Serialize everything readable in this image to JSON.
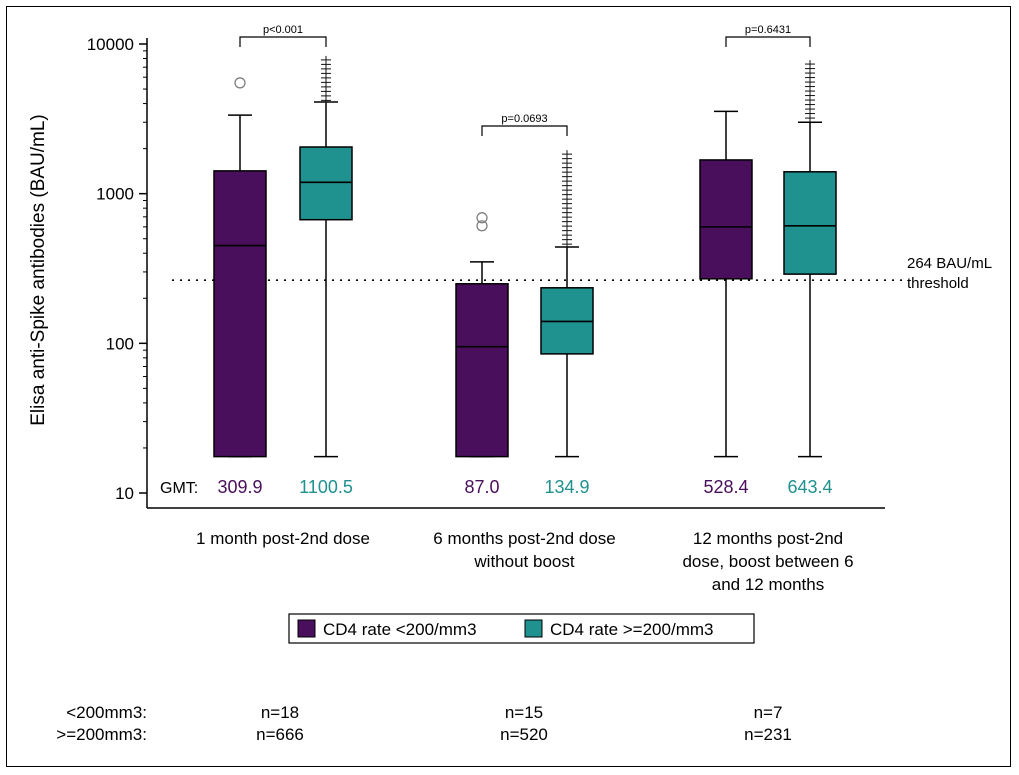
{
  "chart_data": {
    "type": "box",
    "ylabel": "Elisa anti-Spike antibodies (BAU/mL)",
    "yscale": "log",
    "ylim": [
      10,
      10000
    ],
    "yticks": [
      "10",
      "100",
      "1000",
      "10000"
    ],
    "categories": [
      [
        "1 month post-2nd dose"
      ],
      [
        "6 months post-2nd dose",
        "without boost"
      ],
      [
        "12 months post-2nd",
        "dose, boost between 6",
        "and 12 months"
      ]
    ],
    "series": [
      {
        "name": "CD4 rate <200/mm3",
        "color": "#4a0f5c",
        "boxes": [
          {
            "min": 17.5,
            "q1": 17.5,
            "median": 450,
            "q3": 1420,
            "max": 3350,
            "outliers": [
              5500
            ]
          },
          {
            "min": 17.5,
            "q1": 17.5,
            "median": 95,
            "q3": 250,
            "max": 350,
            "outliers": [
              610,
              690
            ]
          },
          {
            "min": 17.5,
            "q1": 270,
            "median": 600,
            "q3": 1680,
            "max": 3550,
            "outliers": []
          }
        ],
        "gmt": [
          "309.9",
          "87.0",
          "528.4"
        ],
        "n_label": "<200mm3:",
        "n": [
          "n=18",
          "n=15",
          "n=7"
        ]
      },
      {
        "name": "CD4 rate >=200/mm3",
        "color": "#1f918f",
        "boxes": [
          {
            "min": 17.5,
            "q1": 670,
            "median": 1190,
            "q3": 2050,
            "max": 4100,
            "outliers_from": 4200,
            "outliers_to": 8000
          },
          {
            "min": 17.5,
            "q1": 85,
            "median": 140,
            "q3": 235,
            "max": 440,
            "outliers_from": 460,
            "outliers_to": 1900
          },
          {
            "min": 17.5,
            "q1": 290,
            "median": 610,
            "q3": 1400,
            "max": 3000,
            "outliers_from": 3200,
            "outliers_to": 7800
          }
        ],
        "gmt": [
          "1100.5",
          "134.9",
          "643.4"
        ],
        "n_label": ">=200mm3:",
        "n": [
          "n=666",
          "n=520",
          "n=231"
        ]
      }
    ],
    "gmt_label": "GMT:",
    "threshold": {
      "value": 264,
      "label": [
        "264 BAU/mL",
        "threshold"
      ]
    },
    "pvalues": [
      "p<0.001",
      "p=0.0693",
      "p=0.6431"
    ],
    "legend": {
      "position": "bottom-center"
    }
  }
}
